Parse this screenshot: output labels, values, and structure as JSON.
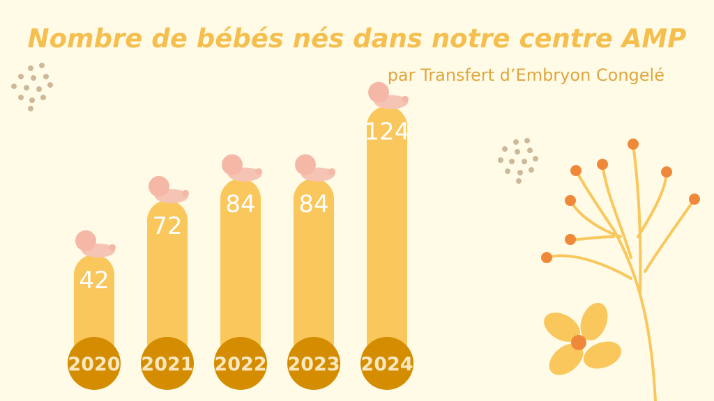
{
  "chart_data": {
    "type": "bar",
    "title": "Nombre de bébés nés dans notre centre AMP",
    "subtitle": "par Transfert d’Embryon Congelé",
    "categories": [
      "2020",
      "2021",
      "2022",
      "2023",
      "2024"
    ],
    "values": [
      42,
      72,
      84,
      84,
      124
    ],
    "color": "#f9c75c"
  }
}
